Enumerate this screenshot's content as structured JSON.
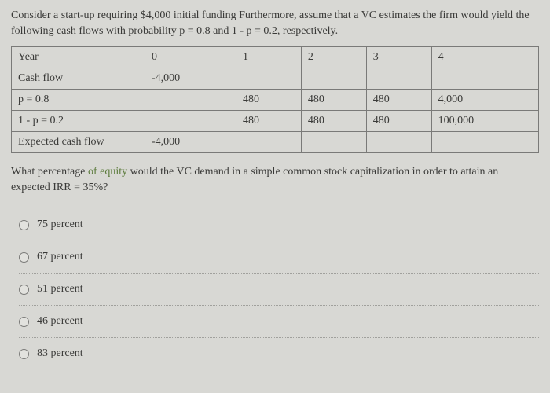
{
  "intro": "Consider a start-up requiring $4,000 initial funding Furthermore, assume that a VC estimates the firm would yield the following cash flows with probability p = 0.8 and 1 - p = 0.2, respectively.",
  "table": {
    "columns": [
      "Year",
      "0",
      "1",
      "2",
      "3",
      "4"
    ],
    "rows": [
      [
        "Cash flow",
        "-4,000",
        "",
        "",
        "",
        ""
      ],
      [
        "p = 0.8",
        "",
        "480",
        "480",
        "480",
        "4,000"
      ],
      [
        "1 - p = 0.2",
        "",
        "480",
        "480",
        "480",
        "100,000"
      ],
      [
        "Expected cash flow",
        "-4,000",
        "",
        "",
        "",
        ""
      ]
    ],
    "border_color": "#7a7a78",
    "cell_bg": "#d8d8d4"
  },
  "question_pre": "What percentage ",
  "question_green": "of equity",
  "question_post": " would the VC demand in a simple common stock capitalization in order to attain an expected IRR = 35%?",
  "options": [
    {
      "label": "75 percent"
    },
    {
      "label": "67 percent"
    },
    {
      "label": "51 percent"
    },
    {
      "label": "46 percent"
    },
    {
      "label": "83 percent"
    }
  ],
  "colors": {
    "bg": "#d8d8d4",
    "text": "#3a3a38",
    "green": "#5a7a3a",
    "border": "#7a7a78",
    "dotted": "#a0a09c"
  }
}
